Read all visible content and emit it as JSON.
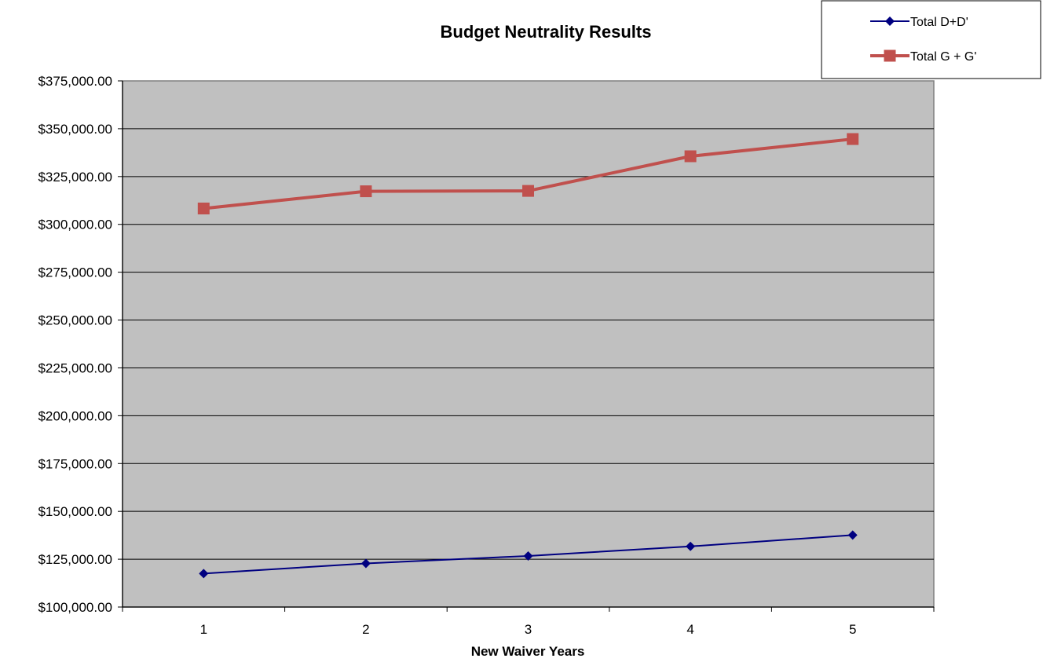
{
  "chart_data": {
    "type": "line",
    "title": "Budget Neutrality Results",
    "xlabel": "New Waiver Years",
    "ylabel": "",
    "categories": [
      "1",
      "2",
      "3",
      "4",
      "5"
    ],
    "ylim": [
      100000,
      375000
    ],
    "ytick_step": 25000,
    "ytick_labels": [
      "$100,000.00",
      "$125,000.00",
      "$150,000.00",
      "$175,000.00",
      "$200,000.00",
      "$225,000.00",
      "$250,000.00",
      "$275,000.00",
      "$300,000.00",
      "$325,000.00",
      "$350,000.00",
      "$375,000.00"
    ],
    "grid": true,
    "legend_position": "top-right",
    "plot_background": "#c0c0c0",
    "series": [
      {
        "name": "Total D+D'",
        "values": [
          117500,
          122800,
          126700,
          131700,
          137600
        ],
        "color": "#000080",
        "marker": "diamond"
      },
      {
        "name": "Total G + G'",
        "values": [
          308300,
          317300,
          317500,
          335600,
          344600
        ],
        "color": "#c0504d",
        "marker": "square"
      }
    ]
  }
}
